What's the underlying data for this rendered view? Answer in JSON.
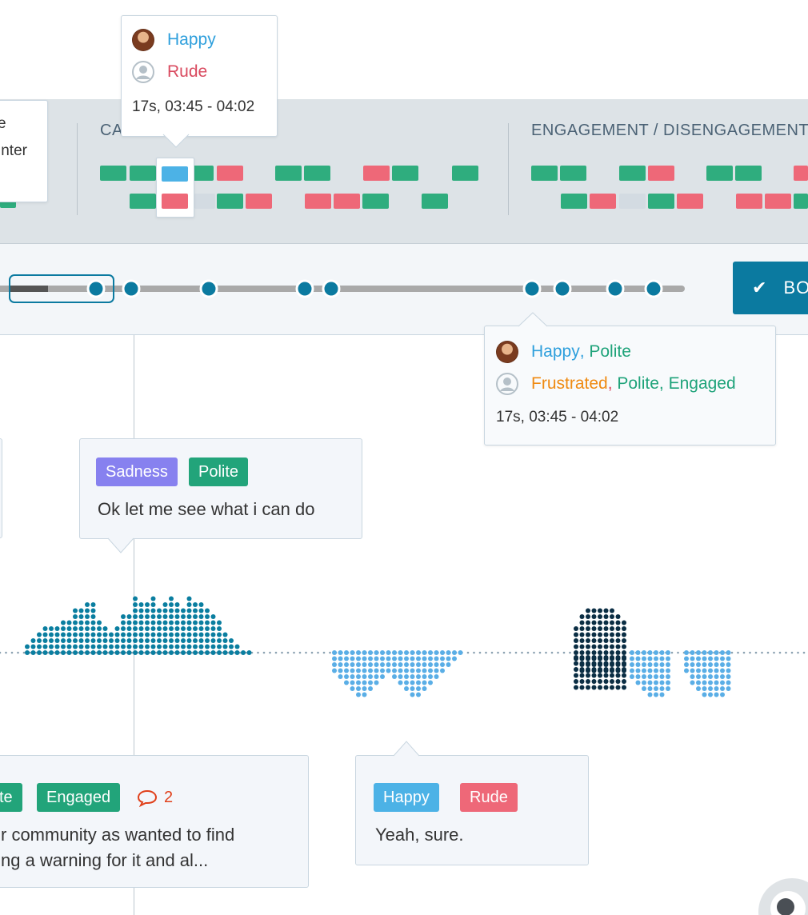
{
  "colors": {
    "positive": "#2fad7e",
    "negative": "#ee6878",
    "selected": "#4cb2e6",
    "neutral": "#d3dbe2",
    "primary_button": "#0b7aa0",
    "agent_wave": "#0a7ea0",
    "customer_wave": "#5aaee6",
    "customer_dark_wave": "#0b2e44"
  },
  "top_tooltip": {
    "agent_emotion": "Happy",
    "customer_emotion": "Rude",
    "meta": "17s, 03:45 - 04:02"
  },
  "left_card": {
    "line1": "e",
    "line2": "inter"
  },
  "sections": {
    "calm_title": "CALM / AGITATION",
    "engagement_title": "ENGAGEMENT / DISENGAGEMENT"
  },
  "confirm_button": {
    "label": "BO",
    "icon": "check-icon"
  },
  "timeline_tooltip": {
    "agent_part1": "Happy",
    "agent_sep": ", ",
    "agent_part2": "Polite",
    "customer_part1": "Frustrated",
    "customer_sep": ", ",
    "customer_part2": "Polite, Engaged",
    "meta": "17s, 03:45 - 04:02"
  },
  "bubbles": {
    "agent_bubble": {
      "tag1": "Sadness",
      "tag2": "Polite",
      "text": "Ok let me see what i can do"
    },
    "customer_bubble_left": {
      "tag1": "te",
      "tag2": "Engaged",
      "comment_count": "2",
      "line1": "r community as wanted to find",
      "line2": "ng a warning for it and al..."
    },
    "customer_bubble_right": {
      "tag1": "Happy",
      "tag2": "Rude",
      "text": "Yeah, sure."
    }
  },
  "icons": {
    "avatar": "agent-avatar",
    "user": "user-icon",
    "comment": "comment-icon",
    "eye": "eye-icon"
  }
}
